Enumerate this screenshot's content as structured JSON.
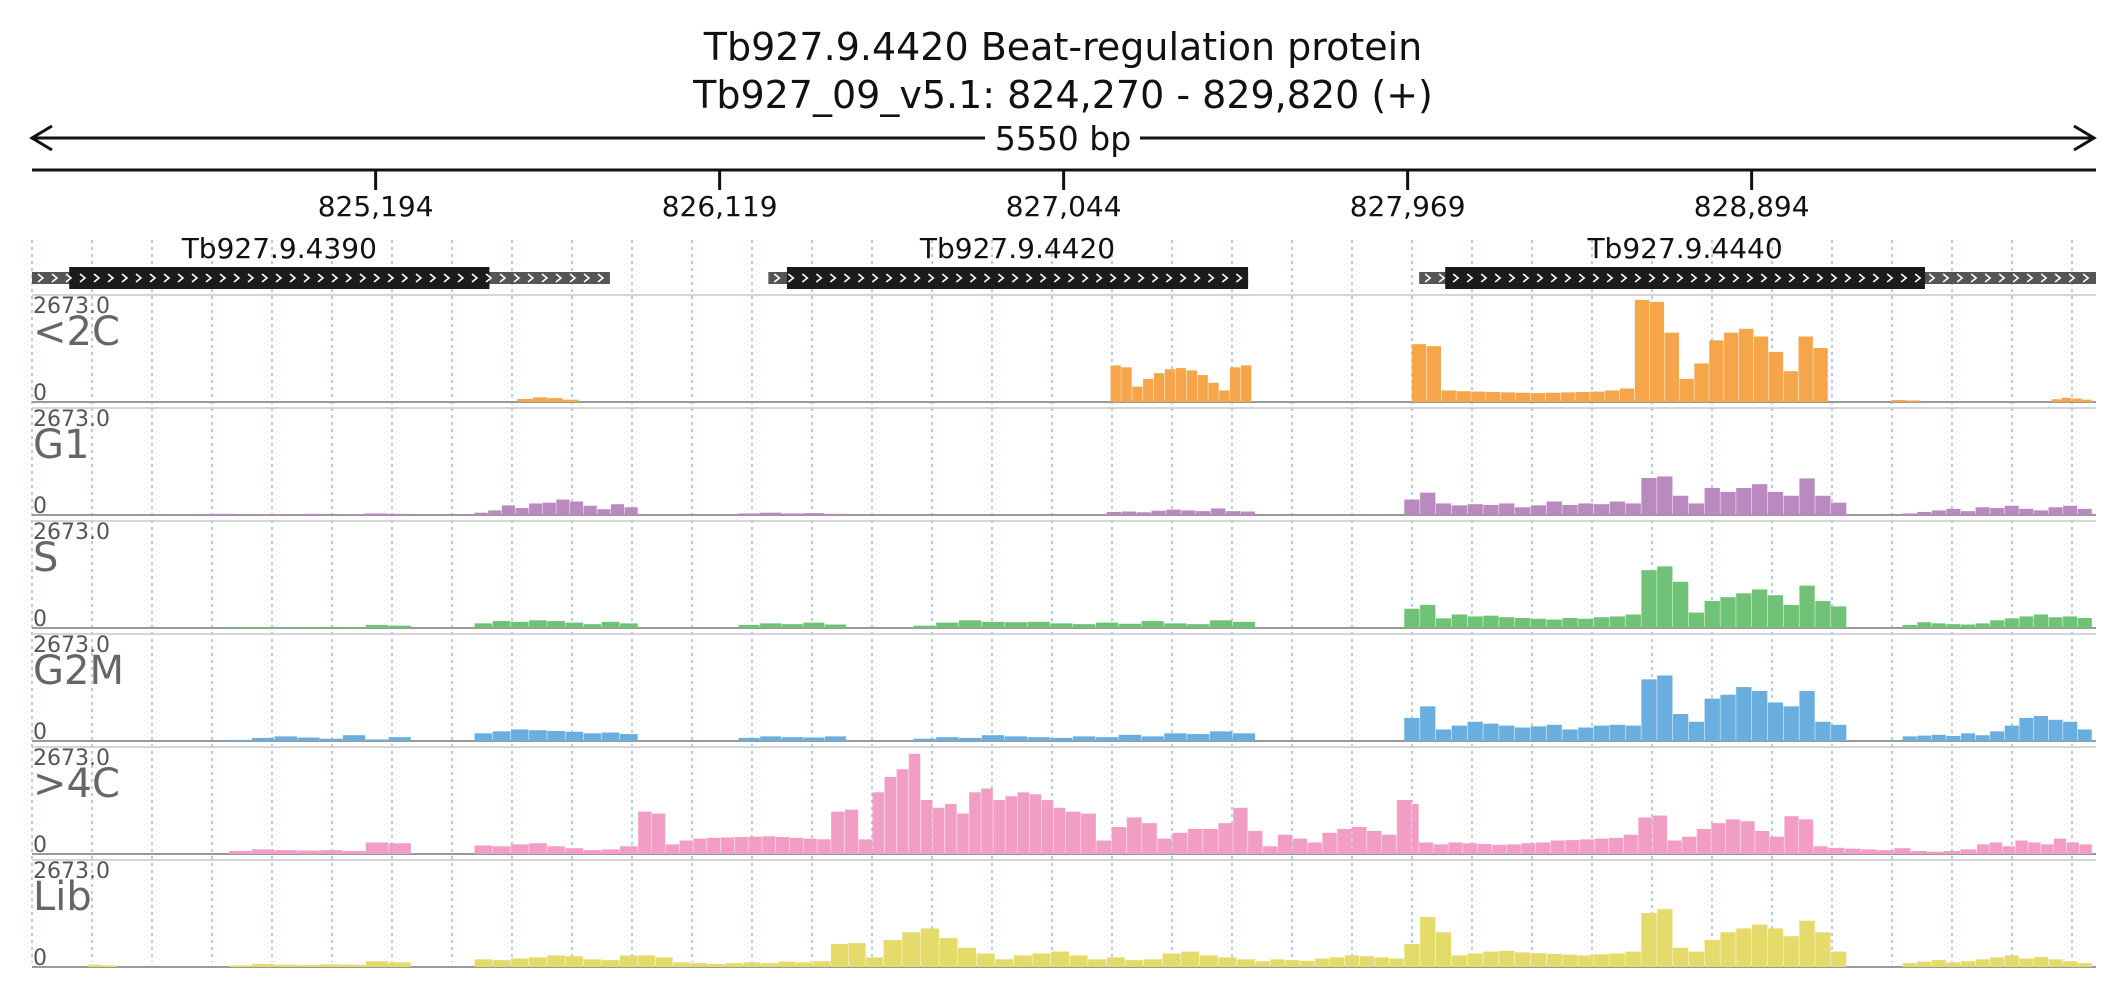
{
  "chart_data": {
    "type": "area",
    "title_line1": "Tb927.9.4420  Beat-regulation protein",
    "title_line2": "Tb927_09_v5.1: 824,270 - 829,820 (+)",
    "length_label": "5550 bp",
    "region": {
      "start": 824270,
      "end": 829820,
      "strand": "+"
    },
    "ticks": [
      {
        "pos": 825194,
        "label": "825,194"
      },
      {
        "pos": 826119,
        "label": "826,119"
      },
      {
        "pos": 827044,
        "label": "827,044"
      },
      {
        "pos": 827969,
        "label": "827,969"
      },
      {
        "pos": 828894,
        "label": "828,894"
      }
    ],
    "genes": [
      {
        "name": "Tb927.9.4390",
        "start": 824270,
        "end": 825824,
        "cds_start": 824370,
        "cds_end": 825500
      },
      {
        "name": "Tb927.9.4420",
        "start": 826250,
        "end": 827540,
        "cds_start": 826300,
        "cds_end": 827540
      },
      {
        "name": "Tb927.9.4440",
        "start": 828000,
        "end": 829820,
        "cds_start": 828070,
        "cds_end": 829360
      }
    ],
    "track_max": "2673.0",
    "track_min": "0",
    "tracks": [
      {
        "name": "<2C",
        "color": "#f5a54a",
        "segments": [
          {
            "start": 825575,
            "end": 825740,
            "values": [
              80,
              120,
              100,
              60
            ]
          },
          {
            "start": 827170,
            "end": 827550,
            "values": [
              950,
              900,
              400,
              600,
              750,
              850,
              880,
              820,
              700,
              500,
              300,
              900,
              950
            ]
          },
          {
            "start": 827980,
            "end": 829100,
            "values": [
              1500,
              1450,
              300,
              280,
              270,
              260,
              250,
              240,
              230,
              240,
              250,
              260,
              270,
              300,
              350,
              2650,
              2600,
              1800,
              600,
              1000,
              1600,
              1800,
              1900,
              1700,
              1300,
              800,
              1700,
              1400
            ]
          },
          {
            "start": 829270,
            "end": 829350,
            "values": [
              50,
              40
            ]
          },
          {
            "start": 829700,
            "end": 829810,
            "values": [
              70,
              110,
              90,
              60
            ]
          }
        ]
      },
      {
        "name": "G1",
        "color": "#b989c0",
        "segments": [
          {
            "start": 824700,
            "end": 825060,
            "values": [
              20,
              30,
              20,
              25,
              15,
              30
            ]
          },
          {
            "start": 825100,
            "end": 825290,
            "values": [
              25,
              40,
              30
            ]
          },
          {
            "start": 825460,
            "end": 825900,
            "values": [
              60,
              120,
              250,
              180,
              300,
              320,
              400,
              350,
              240,
              150,
              280,
              200
            ]
          },
          {
            "start": 826170,
            "end": 826460,
            "values": [
              40,
              60,
              40,
              50,
              30
            ]
          },
          {
            "start": 827160,
            "end": 827560,
            "values": [
              80,
              90,
              70,
              110,
              140,
              120,
              100,
              170,
              100,
              90
            ]
          },
          {
            "start": 827960,
            "end": 829150,
            "values": [
              400,
              580,
              300,
              250,
              280,
              260,
              300,
              200,
              250,
              350,
              260,
              300,
              280,
              350,
              300,
              960,
              1000,
              500,
              300,
              700,
              600,
              700,
              800,
              600,
              500,
              950,
              500,
              320
            ]
          },
          {
            "start": 829300,
            "end": 829810,
            "values": [
              40,
              80,
              120,
              160,
              100,
              200,
              180,
              240,
              160,
              120,
              200,
              240,
              160
            ]
          }
        ]
      },
      {
        "name": "S",
        "color": "#6fc276",
        "segments": [
          {
            "start": 824800,
            "end": 825290,
            "values": [
              20,
              25,
              15,
              20,
              30,
              20,
              80,
              60
            ]
          },
          {
            "start": 825460,
            "end": 825900,
            "values": [
              120,
              180,
              160,
              200,
              180,
              140,
              100,
              160,
              120
            ]
          },
          {
            "start": 826170,
            "end": 826460,
            "values": [
              80,
              120,
              100,
              140,
              90
            ]
          },
          {
            "start": 826640,
            "end": 827560,
            "values": [
              60,
              140,
              200,
              160,
              150,
              160,
              120,
              100,
              140,
              110,
              180,
              120,
              100,
              200,
              160
            ]
          },
          {
            "start": 827960,
            "end": 829150,
            "values": [
              500,
              600,
              250,
              350,
              300,
              320,
              280,
              260,
              240,
              220,
              260,
              240,
              280,
              300,
              350,
              1500,
              1600,
              1200,
              400,
              700,
              800,
              900,
              1000,
              850,
              600,
              1100,
              700,
              560
            ]
          },
          {
            "start": 829300,
            "end": 829810,
            "values": [
              80,
              150,
              120,
              100,
              90,
              120,
              200,
              250,
              300,
              350,
              280,
              300,
              260
            ]
          }
        ]
      },
      {
        "name": "G2M",
        "color": "#6aaedf",
        "segments": [
          {
            "start": 824800,
            "end": 825290,
            "values": [
              30,
              80,
              120,
              90,
              60,
              150,
              40,
              100
            ]
          },
          {
            "start": 825460,
            "end": 825900,
            "values": [
              200,
              250,
              300,
              280,
              260,
              240,
              200,
              220,
              180
            ]
          },
          {
            "start": 826170,
            "end": 826460,
            "values": [
              80,
              120,
              100,
              90,
              120
            ]
          },
          {
            "start": 826640,
            "end": 827560,
            "values": [
              60,
              100,
              80,
              150,
              120,
              100,
              80,
              120,
              100,
              160,
              120,
              200,
              180,
              250,
              200
            ]
          },
          {
            "start": 827960,
            "end": 829150,
            "values": [
              600,
              900,
              300,
              400,
              500,
              450,
              400,
              350,
              380,
              420,
              300,
              350,
              400,
              420,
              400,
              1600,
              1700,
              700,
              500,
              1100,
              1200,
              1400,
              1300,
              1000,
              900,
              1300,
              500,
              420
            ]
          },
          {
            "start": 829300,
            "end": 829810,
            "values": [
              120,
              140,
              160,
              130,
              200,
              150,
              250,
              400,
              600,
              650,
              550,
              500,
              300
            ]
          }
        ]
      },
      {
        "name": ">4C",
        "color": "#f29dc3",
        "segments": [
          {
            "start": 824800,
            "end": 825290,
            "values": [
              80,
              120,
              100,
              90,
              100,
              80,
              300,
              280
            ]
          },
          {
            "start": 825460,
            "end": 825900,
            "values": [
              220,
              200,
              250,
              280,
              200,
              150,
              100,
              120,
              200
            ]
          },
          {
            "start": 825900,
            "end": 826530,
            "values": [
              1100,
              1050,
              250,
              350,
              400,
              420,
              430,
              440,
              450,
              460,
              440,
              420,
              400,
              380,
              1100,
              1150,
              380
            ]
          },
          {
            "start": 826530,
            "end": 827050,
            "values": [
              1600,
              2000,
              2200,
              2600,
              1400,
              1200,
              1300,
              1050,
              1600,
              1700,
              1400,
              1500,
              1600,
              1550,
              1400,
              1200
            ]
          },
          {
            "start": 827050,
            "end": 827460,
            "values": [
              1100,
              1050,
              350,
              700,
              950,
              800,
              400,
              550,
              650,
              650
            ]
          },
          {
            "start": 827460,
            "end": 827980,
            "values": [
              800,
              1200,
              600,
              200,
              500,
              400,
              300,
              550,
              650,
              700,
              600,
              500,
              1400
            ]
          },
          {
            "start": 827980,
            "end": 828000,
            "values": [
              1300
            ]
          },
          {
            "start": 828000,
            "end": 829100,
            "values": [
              300,
              250,
              300,
              280,
              260,
              240,
              250,
              280,
              300,
              350,
              360,
              380,
              400,
              420,
              500,
              950,
              1000,
              350,
              450,
              650,
              800,
              900,
              850,
              600,
              450,
              980,
              900,
              200
            ]
          },
          {
            "start": 829100,
            "end": 829500,
            "values": [
              160,
              140,
              120,
              100,
              150,
              80,
              60,
              80,
              120
            ]
          },
          {
            "start": 829500,
            "end": 829810,
            "values": [
              250,
              300,
              200,
              350,
              300,
              250,
              400,
              300,
              250
            ]
          }
        ]
      },
      {
        "name": "Lib",
        "color": "#e4db6b",
        "segments": [
          {
            "start": 824420,
            "end": 824500,
            "values": [
              60,
              40
            ]
          },
          {
            "start": 824800,
            "end": 825290,
            "values": [
              40,
              80,
              60,
              50,
              70,
              60,
              150,
              120
            ]
          },
          {
            "start": 825460,
            "end": 825900,
            "values": [
              200,
              180,
              220,
              250,
              300,
              280,
              200,
              180,
              300
            ]
          },
          {
            "start": 825900,
            "end": 826560,
            "values": [
              300,
              250,
              120,
              100,
              80,
              100,
              120,
              100,
              140,
              120,
              150,
              600,
              620,
              250
            ]
          },
          {
            "start": 826560,
            "end": 827560,
            "values": [
              700,
              900,
              1000,
              750,
              500,
              350,
              200,
              300,
              350,
              400,
              300,
              200,
              250,
              180,
              200,
              350,
              400,
              300,
              250,
              200
            ]
          },
          {
            "start": 827560,
            "end": 827960,
            "values": [
              150,
              200,
              180,
              160,
              220,
              250,
              300,
              280,
              250,
              220
            ]
          },
          {
            "start": 827960,
            "end": 829150,
            "values": [
              600,
              1300,
              900,
              300,
              350,
              400,
              420,
              380,
              360,
              340,
              320,
              300,
              330,
              350,
              400,
              1400,
              1500,
              500,
              400,
              700,
              900,
              1000,
              1100,
              1000,
              800,
              1200,
              900,
              400
            ]
          },
          {
            "start": 829300,
            "end": 829810,
            "values": [
              100,
              140,
              180,
              120,
              150,
              200,
              250,
              300,
              220,
              260,
              200,
              150,
              100
            ]
          }
        ]
      }
    ],
    "gridlines": "vertical dotted"
  }
}
